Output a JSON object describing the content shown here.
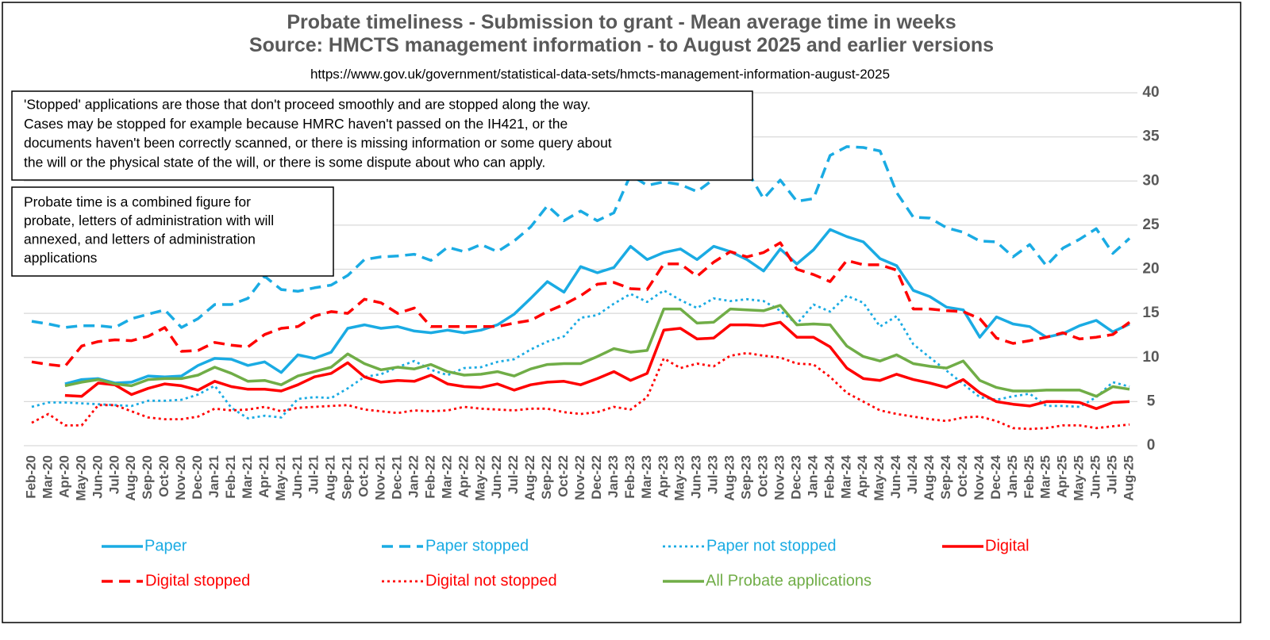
{
  "chart_data": {
    "type": "line",
    "title": "Probate timeliness - Submission to grant - Mean average time in weeks",
    "subtitle": "Source: HMCTS management information - to August 2025 and earlier versions",
    "source_url": "https://www.gov.uk/government/statistical-data-sets/hmcts-management-information-august-2025",
    "annotations": [
      [
        "'Stopped' applications are those that don't proceed smoothly and are stopped along the way.",
        "Cases may be stopped for example because HMRC haven't passed on the IH421, or the",
        "documents haven't been correctly scanned, or there is missing information or some query about",
        "the will or the physical state of the will, or there is some dispute about who can apply."
      ],
      [
        "Probate time is a combined figure for",
        "probate, letters of administration with will",
        "annexed, and letters of administration",
        "applications"
      ]
    ],
    "categories": [
      "Feb-20",
      "Mar-20",
      "Apr-20",
      "May-20",
      "Jun-20",
      "Jul-20",
      "Aug-20",
      "Sep-20",
      "Oct-20",
      "Nov-20",
      "Dec-20",
      "Jan-21",
      "Feb-21",
      "Mar-21",
      "Apr-21",
      "May-21",
      "Jun-21",
      "Jul-21",
      "Aug-21",
      "Sep-21",
      "Oct-21",
      "Nov-21",
      "Dec-21",
      "Jan-22",
      "Feb-22",
      "Mar-22",
      "Apr-22",
      "May-22",
      "Jun-22",
      "Jul-22",
      "Aug-22",
      "Sep-22",
      "Oct-22",
      "Nov-22",
      "Dec-22",
      "Jan-23",
      "Feb-23",
      "Mar-23",
      "Apr-23",
      "May-23",
      "Jun-23",
      "Jul-23",
      "Aug-23",
      "Sep-23",
      "Oct-23",
      "Nov-23",
      "Dec-23",
      "Jan-24",
      "Feb-24",
      "Mar-24",
      "Apr-24",
      "May-24",
      "Jun-24",
      "Jul-24",
      "Aug-24",
      "Sep-24",
      "Oct-24",
      "Nov-24",
      "Dec-24",
      "Jan-25",
      "Feb-25",
      "Mar-25",
      "Apr-25",
      "May-25",
      "Jun-25",
      "Jul-25",
      "Aug-25"
    ],
    "ylim": [
      0,
      40
    ],
    "yticks": [
      0,
      5,
      10,
      15,
      20,
      25,
      30,
      35,
      40
    ],
    "y_axis_side": "right",
    "grid": true,
    "legend_position": "bottom",
    "series": [
      {
        "name": "Paper",
        "color": "#1aabe3",
        "style": "solid",
        "values": [
          null,
          null,
          7.0,
          7.5,
          7.6,
          7.1,
          7.2,
          7.9,
          7.8,
          7.9,
          9.1,
          9.9,
          9.8,
          9.1,
          9.5,
          8.3,
          10.3,
          9.9,
          10.6,
          13.3,
          13.7,
          13.3,
          13.5,
          13.0,
          12.8,
          13.1,
          12.8,
          13.1,
          13.7,
          14.9,
          16.7,
          18.6,
          17.4,
          20.3,
          19.6,
          20.2,
          22.6,
          21.1,
          21.9,
          22.3,
          21.1,
          22.6,
          22.0,
          21.1,
          19.8,
          22.3,
          20.6,
          22.2,
          24.5,
          23.7,
          23.1,
          21.2,
          20.4,
          17.6,
          16.9,
          15.7,
          15.4,
          12.3,
          14.6,
          13.8,
          13.5,
          12.3,
          12.7,
          13.6,
          14.2,
          12.9,
          13.8
        ]
      },
      {
        "name": "Paper stopped",
        "color": "#1aabe3",
        "style": "dashed",
        "values": [
          14.1,
          13.8,
          13.4,
          13.6,
          13.6,
          13.4,
          14.4,
          14.9,
          15.4,
          13.4,
          14.4,
          16.0,
          16.0,
          16.7,
          19.2,
          17.7,
          17.5,
          17.9,
          18.2,
          19.3,
          21.1,
          21.4,
          21.5,
          21.7,
          21.0,
          22.5,
          22.0,
          22.8,
          22.0,
          23.2,
          24.8,
          27.2,
          25.5,
          26.6,
          25.5,
          26.4,
          30.7,
          29.5,
          29.9,
          29.6,
          28.8,
          30.2,
          30.8,
          31.2,
          28.0,
          30.1,
          27.7,
          28.0,
          32.9,
          33.9,
          33.8,
          33.4,
          28.7,
          25.9,
          25.8,
          24.7,
          24.2,
          23.2,
          23.1,
          21.4,
          22.8,
          20.4,
          22.4,
          23.4,
          24.6,
          21.8,
          23.5
        ]
      },
      {
        "name": "Paper not stopped",
        "color": "#1aabe3",
        "style": "dotted",
        "values": [
          4.4,
          4.9,
          4.9,
          4.8,
          4.7,
          4.6,
          4.5,
          5.1,
          5.1,
          5.2,
          5.8,
          6.8,
          4.3,
          3.1,
          3.4,
          3.2,
          5.3,
          5.5,
          5.4,
          6.5,
          7.8,
          8.1,
          8.9,
          9.6,
          8.6,
          8.0,
          8.8,
          8.9,
          9.5,
          9.8,
          10.9,
          11.8,
          12.4,
          14.5,
          14.8,
          16.1,
          17.2,
          16.3,
          17.6,
          16.5,
          15.6,
          16.7,
          16.4,
          16.6,
          16.4,
          15.3,
          13.8,
          16.0,
          15.2,
          17.0,
          16.2,
          13.5,
          14.7,
          11.5,
          10.0,
          8.5,
          7.0,
          5.5,
          5.2,
          5.6,
          5.9,
          4.5,
          4.5,
          4.4,
          5.5,
          7.2,
          6.7
        ]
      },
      {
        "name": "Digital",
        "color": "#ff0000",
        "style": "solid",
        "values": [
          null,
          null,
          5.7,
          5.6,
          7.1,
          6.9,
          5.8,
          6.5,
          7.0,
          6.8,
          6.3,
          7.3,
          6.7,
          6.4,
          6.4,
          6.2,
          6.9,
          7.8,
          8.2,
          9.4,
          7.8,
          7.2,
          7.4,
          7.3,
          8.0,
          7.0,
          6.7,
          6.6,
          7.0,
          6.3,
          6.9,
          7.2,
          7.3,
          6.9,
          7.6,
          8.4,
          7.4,
          8.2,
          13.1,
          13.3,
          12.1,
          12.2,
          13.7,
          13.7,
          13.6,
          14.0,
          12.3,
          12.3,
          11.2,
          8.8,
          7.6,
          7.4,
          8.1,
          7.5,
          7.1,
          6.6,
          7.5,
          6.0,
          5.0,
          4.7,
          4.5,
          5.0,
          5.0,
          4.9,
          4.2,
          4.9,
          5.0
        ]
      },
      {
        "name": "Digital stopped",
        "color": "#ff0000",
        "style": "dashed",
        "values": [
          9.5,
          9.2,
          9.0,
          11.3,
          11.8,
          12.0,
          11.9,
          12.4,
          13.4,
          10.7,
          10.8,
          11.7,
          11.4,
          11.2,
          12.6,
          13.3,
          13.5,
          14.7,
          15.2,
          15.0,
          16.6,
          16.2,
          15.0,
          15.6,
          13.5,
          13.5,
          13.5,
          13.5,
          13.5,
          13.9,
          14.2,
          15.2,
          16.0,
          17.0,
          18.3,
          18.5,
          17.8,
          17.7,
          20.6,
          20.6,
          19.2,
          20.8,
          22.0,
          21.4,
          21.9,
          23.0,
          20.0,
          19.4,
          18.6,
          21.0,
          20.5,
          20.5,
          19.9,
          15.5,
          15.5,
          15.3,
          15.2,
          14.4,
          12.2,
          11.6,
          11.9,
          12.3,
          12.8,
          12.1,
          12.3,
          12.6,
          14.0
        ]
      },
      {
        "name": "Digital not stopped",
        "color": "#ff0000",
        "style": "dotted",
        "values": [
          2.6,
          3.6,
          2.3,
          2.3,
          4.6,
          4.6,
          3.9,
          3.2,
          3.0,
          3.0,
          3.3,
          4.2,
          4.0,
          4.1,
          4.4,
          3.9,
          4.3,
          4.4,
          4.5,
          4.6,
          4.1,
          3.9,
          3.7,
          4.0,
          3.9,
          4.0,
          4.4,
          4.2,
          4.1,
          4.0,
          4.2,
          4.2,
          3.8,
          3.6,
          3.8,
          4.4,
          4.1,
          5.5,
          9.9,
          8.8,
          9.3,
          9.0,
          10.2,
          10.5,
          10.2,
          10.0,
          9.3,
          9.2,
          7.8,
          6.0,
          5.0,
          4.0,
          3.6,
          3.3,
          3.0,
          2.8,
          3.2,
          3.3,
          2.8,
          2.0,
          1.9,
          2.0,
          2.3,
          2.3,
          2.0,
          2.2,
          2.4
        ]
      },
      {
        "name": "All Probate applications",
        "color": "#70ad47",
        "style": "solid",
        "values": [
          null,
          null,
          6.8,
          7.2,
          7.5,
          7.0,
          6.8,
          7.5,
          7.6,
          7.6,
          8.0,
          8.9,
          8.2,
          7.3,
          7.4,
          6.9,
          7.9,
          8.4,
          8.9,
          10.4,
          9.3,
          8.6,
          8.9,
          8.7,
          9.2,
          8.4,
          8.0,
          8.1,
          8.4,
          7.9,
          8.7,
          9.2,
          9.3,
          9.3,
          10.1,
          11.0,
          10.6,
          10.8,
          15.5,
          15.5,
          13.9,
          14.0,
          15.5,
          15.4,
          15.3,
          15.9,
          13.7,
          13.8,
          13.7,
          11.3,
          10.1,
          9.6,
          10.3,
          9.3,
          9.0,
          8.8,
          9.6,
          7.4,
          6.6,
          6.2,
          6.2,
          6.3,
          6.3,
          6.3,
          5.6,
          6.7,
          6.4
        ]
      }
    ]
  }
}
